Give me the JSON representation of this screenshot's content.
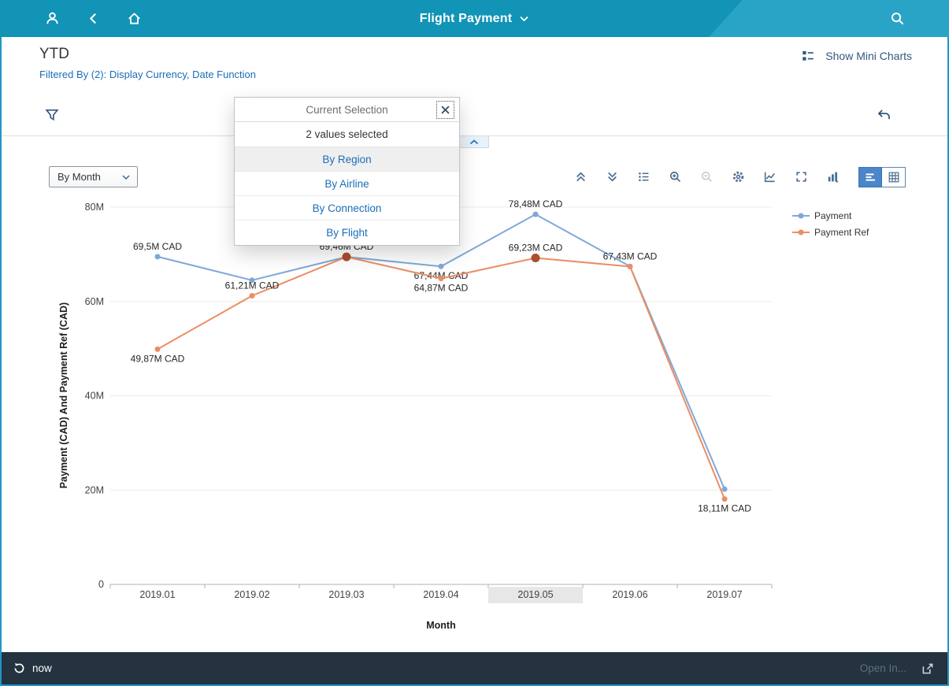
{
  "shell": {
    "title": "Flight Payment"
  },
  "header": {
    "title": "YTD",
    "filtered_by": "Filtered By (2): Display Currency, Date Function",
    "show_mini_charts": "Show Mini Charts"
  },
  "popup": {
    "title": "Current Selection",
    "subtitle": "2 values selected",
    "items": [
      "By Region",
      "By Airline",
      "By Connection",
      "By Flight"
    ]
  },
  "chart_toolbar": {
    "dimension_selector": "By Month"
  },
  "footer": {
    "refresh_label": "now",
    "open_in": "Open In..."
  },
  "icons": {
    "shell": [
      "person-icon",
      "back-icon",
      "home-icon",
      "chevron-down-icon",
      "search-icon"
    ],
    "header": [
      "mini-charts-icon",
      "filter-funnel-icon",
      "undo-icon"
    ],
    "chart_toolbar": [
      "chevrons-up-icon",
      "chevrons-down-icon",
      "legend-list-icon",
      "zoom-in-icon",
      "zoom-out-icon",
      "gear-icon",
      "line-chart-icon",
      "fullscreen-icon",
      "chart-type-icon",
      "bar-chart-view-icon",
      "table-view-icon"
    ],
    "footer": [
      "refresh-icon",
      "open-in-icon"
    ]
  },
  "colors": {
    "shell_bar": "#1194b5",
    "shell_bar_accent": "#2aa4c6",
    "link_blue": "#1b6db8",
    "toolbar_icon": "#4b6e91",
    "selected_view_bg": "#4a86c8",
    "footer_bg": "#24333f",
    "series_payment": "#7fa8d9",
    "series_payment_ref": "#ec8d63",
    "selected_marker": "#a9502c",
    "selected_category_bg": "#e7e7e7"
  },
  "chart_data": {
    "type": "line",
    "title": "",
    "xlabel": "Month",
    "ylabel": "Payment (CAD) And Payment Ref (CAD)",
    "unit": "values in millions CAD",
    "categories": [
      "2019.01",
      "2019.02",
      "2019.03",
      "2019.04",
      "2019.05",
      "2019.06",
      "2019.07"
    ],
    "selected_category": "2019.05",
    "ylim_millions": [
      0,
      80
    ],
    "ytick_labels": [
      "0",
      "20M",
      "40M",
      "60M",
      "80M"
    ],
    "grid": true,
    "legend_position": "right",
    "series": [
      {
        "name": "Payment",
        "color": "#7fa8d9",
        "values_millions": [
          69.5,
          64.5,
          69.46,
          67.44,
          78.48,
          67.43,
          20.2
        ],
        "labels": [
          "69,5M CAD",
          null,
          "69,46M CAD",
          "67,44M CAD",
          "78,48M CAD",
          "67,43M CAD",
          null
        ],
        "label_pos": [
          "above",
          null,
          "above",
          "below",
          "above",
          "above",
          null
        ],
        "selected_indexes": []
      },
      {
        "name": "Payment Ref",
        "color": "#ec8d63",
        "values_millions": [
          49.87,
          61.21,
          69.46,
          64.87,
          69.23,
          67.4,
          18.11
        ],
        "labels": [
          "49,87M CAD",
          "61,21M CAD",
          null,
          "64,87M CAD",
          "69,23M CAD",
          null,
          "18,11M CAD"
        ],
        "label_pos": [
          "below",
          "above",
          null,
          "below",
          "above",
          null,
          "below"
        ],
        "selected_indexes": [
          2,
          4
        ]
      }
    ]
  }
}
